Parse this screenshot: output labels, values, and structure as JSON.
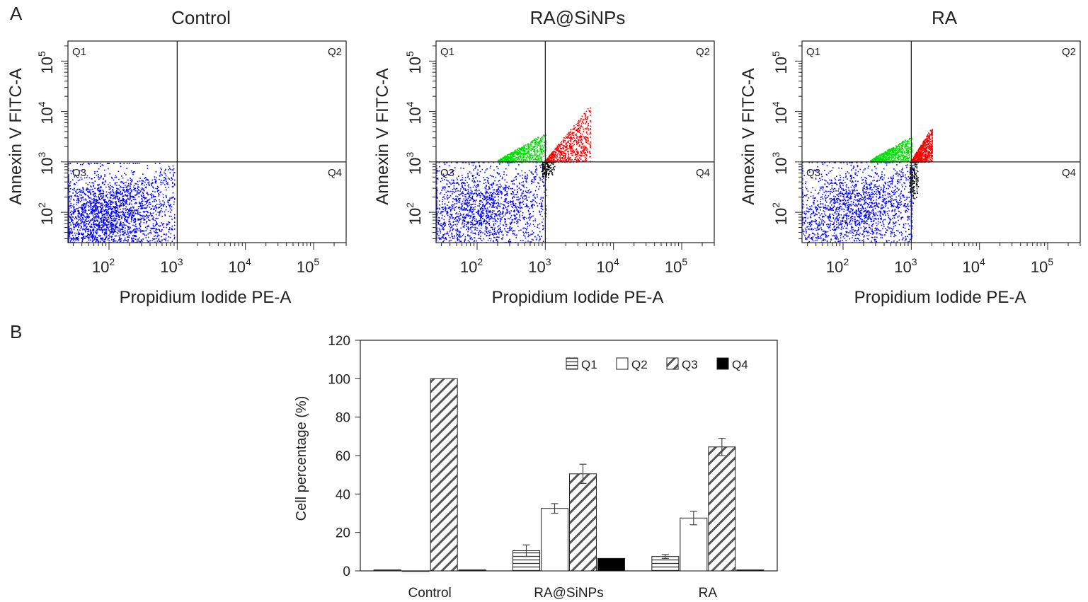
{
  "panel_labels": {
    "a": "A",
    "b": "B"
  },
  "flow": {
    "x_axis_label": "Propidium Iodide PE-A",
    "y_axis_label": "Annexin V FITC-A",
    "quadrant_labels": [
      "Q1",
      "Q2",
      "Q3",
      "Q4"
    ]
  },
  "colors": {
    "Q1": "#00e000",
    "Q2": "#ff0000",
    "Q3": "#0000ff",
    "Q4": "#000000"
  },
  "chart_data": [
    {
      "type": "scatter",
      "title": "Control",
      "xlabel": "Propidium Iodide PE-A",
      "ylabel": "Annexin V FITC-A",
      "x_scale": "log",
      "y_scale": "log",
      "xlim": [
        25,
        300000
      ],
      "ylim": [
        25,
        250000
      ],
      "gate_x": 1000,
      "gate_y": 1000,
      "x_ticks": [
        "10^2",
        "10^3",
        "10^4",
        "10^5"
      ],
      "y_ticks": [
        "10^2",
        "10^3",
        "10^4",
        "10^5"
      ],
      "quadrant_labels": [
        "Q1",
        "Q2",
        "Q3",
        "Q4"
      ],
      "populations": [
        {
          "quadrant": "Q3",
          "color": "#0000ff",
          "x_range": [
            25,
            900
          ],
          "y_range": [
            25,
            950
          ],
          "center": [
            80,
            100
          ]
        }
      ]
    },
    {
      "type": "scatter",
      "title": "RA@SiNPs",
      "xlabel": "Propidium Iodide PE-A",
      "ylabel": "Annexin V FITC-A",
      "x_scale": "log",
      "y_scale": "log",
      "xlim": [
        25,
        300000
      ],
      "ylim": [
        25,
        250000
      ],
      "gate_x": 1000,
      "gate_y": 1000,
      "x_ticks": [
        "10^2",
        "10^3",
        "10^4",
        "10^5"
      ],
      "y_ticks": [
        "10^2",
        "10^3",
        "10^4",
        "10^5"
      ],
      "quadrant_labels": [
        "Q1",
        "Q2",
        "Q3",
        "Q4"
      ],
      "populations": [
        {
          "quadrant": "Q3",
          "color": "#0000ff",
          "x_range": [
            25,
            1000
          ],
          "y_range": [
            25,
            1000
          ],
          "center": [
            100,
            150
          ]
        },
        {
          "quadrant": "Q1",
          "color": "#00e000",
          "x_range": [
            200,
            1000
          ],
          "y_range": [
            1000,
            3500
          ],
          "center": [
            600,
            1500
          ]
        },
        {
          "quadrant": "Q2",
          "color": "#ff0000",
          "x_range": [
            1000,
            4500
          ],
          "y_range": [
            1000,
            12000
          ],
          "center": [
            1800,
            3500
          ]
        },
        {
          "quadrant": "Q4",
          "color": "#000000",
          "x_range": [
            900,
            1500
          ],
          "y_range": [
            400,
            1000
          ],
          "center": [
            1000,
            800
          ]
        }
      ]
    },
    {
      "type": "scatter",
      "title": "RA",
      "xlabel": "Propidium Iodide PE-A",
      "ylabel": "Annexin V FITC-A",
      "x_scale": "log",
      "y_scale": "log",
      "xlim": [
        25,
        300000
      ],
      "ylim": [
        25,
        250000
      ],
      "gate_x": 1000,
      "gate_y": 1000,
      "x_ticks": [
        "10^2",
        "10^3",
        "10^4",
        "10^5"
      ],
      "y_ticks": [
        "10^2",
        "10^3",
        "10^4",
        "10^5"
      ],
      "quadrant_labels": [
        "Q1",
        "Q2",
        "Q3",
        "Q4"
      ],
      "populations": [
        {
          "quadrant": "Q3",
          "color": "#0000ff",
          "x_range": [
            25,
            1000
          ],
          "y_range": [
            25,
            1000
          ],
          "center": [
            150,
            150
          ]
        },
        {
          "quadrant": "Q1",
          "color": "#00e000",
          "x_range": [
            250,
            1000
          ],
          "y_range": [
            1000,
            3000
          ],
          "center": [
            700,
            1400
          ]
        },
        {
          "quadrant": "Q2",
          "color": "#ff0000",
          "x_range": [
            1000,
            2000
          ],
          "y_range": [
            1000,
            4500
          ],
          "center": [
            1300,
            2000
          ]
        },
        {
          "quadrant": "Q4",
          "color": "#000000",
          "x_range": [
            950,
            1300
          ],
          "y_range": [
            150,
            1000
          ],
          "center": [
            1050,
            500
          ]
        }
      ]
    },
    {
      "type": "bar",
      "categories": [
        "Control",
        "RA@SiNPs",
        "RA"
      ],
      "ylabel": "Cell percentage (%)",
      "xlabel": "",
      "ylim": [
        0,
        120
      ],
      "yticks": [
        0,
        20,
        40,
        60,
        80,
        100,
        120
      ],
      "legend_position": "top-right",
      "series": [
        {
          "name": "Q1",
          "pattern": "horizontal-lines",
          "values": [
            0.5,
            10.5,
            7.5
          ],
          "errors": [
            0,
            3,
            1
          ]
        },
        {
          "name": "Q2",
          "pattern": "open",
          "values": [
            0,
            32.5,
            27.5
          ],
          "errors": [
            0,
            2.5,
            3.5
          ]
        },
        {
          "name": "Q3",
          "pattern": "diagonal-hatch",
          "values": [
            100,
            50.5,
            64.5
          ],
          "errors": [
            0,
            5,
            4.5
          ]
        },
        {
          "name": "Q4",
          "pattern": "solid-black",
          "values": [
            0.5,
            6.5,
            0.5
          ],
          "errors": [
            0,
            0,
            0
          ]
        }
      ]
    }
  ]
}
